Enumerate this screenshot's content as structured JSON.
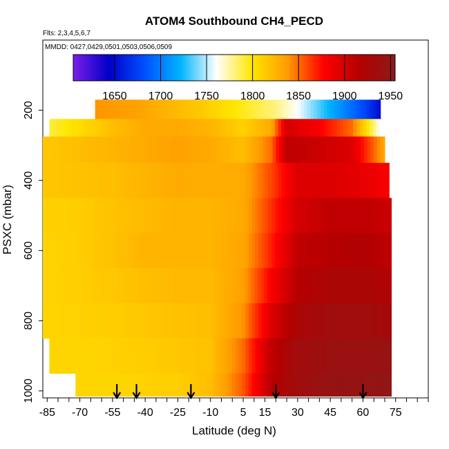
{
  "chart_data": {
    "type": "heatmap",
    "title": "ATOM4 Southbound CH4_PECD",
    "annotations": [
      "Flts: 2,3,4,5,6,7",
      "MMDD: 0427,0429,0501,0503,0506,0509"
    ],
    "xlabel": "Latitude (deg N)",
    "ylabel": "PSXC (mbar)",
    "x_ticks": [
      -85,
      -70,
      -55,
      -40,
      -25,
      -10,
      5,
      15,
      30,
      45,
      60,
      75
    ],
    "x_range": [
      -87,
      90
    ],
    "y_ticks": [
      200,
      400,
      600,
      800,
      1000
    ],
    "y_range": [
      1020,
      0
    ],
    "colorbar": {
      "ticks": [
        1650,
        1700,
        1750,
        1800,
        1850,
        1900,
        1950
      ],
      "range": [
        1605,
        1955
      ],
      "colors": [
        "#7a1ee8",
        "#0000c8",
        "#0050ff",
        "#00b4ff",
        "#ffffff",
        "#ffe600",
        "#ff9a00",
        "#ff0000",
        "#b40000",
        "#8c1a1a"
      ]
    },
    "arrow_latitudes": [
      -53,
      -44,
      -19,
      20,
      60
    ],
    "layers": [
      {
        "p": 200,
        "lat_min": -63,
        "lat_max": 68,
        "lats": [
          -63,
          -45,
          -30,
          -15,
          0,
          10,
          20,
          30,
          45,
          60,
          68
        ],
        "values": [
          1840,
          1835,
          1825,
          1815,
          1800,
          1790,
          1780,
          1760,
          1720,
          1680,
          1650
        ]
      },
      {
        "p": 250,
        "lat_min": -84,
        "lat_max": 68,
        "lats": [
          -84,
          -70,
          -55,
          -40,
          -25,
          -10,
          5,
          18,
          25,
          40,
          55,
          68
        ],
        "values": [
          1790,
          1805,
          1820,
          1830,
          1830,
          1825,
          1810,
          1830,
          1900,
          1880,
          1850,
          1760
        ]
      },
      {
        "p": 300,
        "lat_min": -88,
        "lat_max": 70,
        "lats": [
          -88,
          -70,
          -55,
          -40,
          -25,
          -10,
          5,
          18,
          25,
          40,
          55,
          70
        ],
        "values": [
          1815,
          1820,
          1825,
          1830,
          1835,
          1830,
          1820,
          1850,
          1910,
          1905,
          1895,
          1830
        ]
      },
      {
        "p": 400,
        "lat_min": -90,
        "lat_max": 72,
        "lats": [
          -90,
          -70,
          -55,
          -40,
          -25,
          -10,
          5,
          18,
          30,
          45,
          60,
          72
        ],
        "values": [
          1815,
          1818,
          1820,
          1825,
          1830,
          1828,
          1830,
          1860,
          1895,
          1895,
          1890,
          1880
        ]
      },
      {
        "p": 500,
        "lat_min": -90,
        "lat_max": 73,
        "lats": [
          -90,
          -70,
          -55,
          -40,
          -25,
          -10,
          5,
          18,
          30,
          45,
          60,
          73
        ],
        "values": [
          1810,
          1812,
          1818,
          1822,
          1825,
          1825,
          1830,
          1865,
          1900,
          1910,
          1910,
          1905
        ]
      },
      {
        "p": 600,
        "lat_min": -90,
        "lat_max": 73,
        "lats": [
          -90,
          -70,
          -55,
          -40,
          -25,
          -10,
          5,
          18,
          30,
          45,
          60,
          73
        ],
        "values": [
          1808,
          1812,
          1818,
          1825,
          1825,
          1825,
          1832,
          1870,
          1910,
          1915,
          1920,
          1910
        ]
      },
      {
        "p": 700,
        "lat_min": -89,
        "lat_max": 73,
        "lats": [
          -89,
          -70,
          -55,
          -40,
          -25,
          -10,
          5,
          18,
          30,
          45,
          60,
          73
        ],
        "values": [
          1808,
          1812,
          1815,
          1820,
          1822,
          1822,
          1835,
          1880,
          1915,
          1925,
          1925,
          1920
        ]
      },
      {
        "p": 800,
        "lat_min": -87,
        "lat_max": 73,
        "lats": [
          -87,
          -70,
          -55,
          -40,
          -25,
          -10,
          5,
          18,
          30,
          45,
          60,
          73
        ],
        "values": [
          1808,
          1810,
          1812,
          1815,
          1818,
          1820,
          1840,
          1895,
          1925,
          1935,
          1935,
          1930
        ]
      },
      {
        "p": 900,
        "lat_min": -84,
        "lat_max": 73,
        "lats": [
          -84,
          -70,
          -55,
          -40,
          -25,
          -10,
          5,
          18,
          30,
          45,
          60,
          73
        ],
        "values": [
          1808,
          1808,
          1810,
          1812,
          1815,
          1818,
          1850,
          1910,
          1935,
          1940,
          1940,
          1945
        ]
      },
      {
        "p": 1000,
        "lat_min": -72,
        "lat_max": 73,
        "lats": [
          -72,
          -60,
          -50,
          -40,
          -25,
          -10,
          5,
          18,
          30,
          45,
          60,
          73
        ],
        "values": [
          1808,
          1808,
          1808,
          1810,
          1812,
          1820,
          1855,
          1915,
          1935,
          1945,
          1945,
          1950
        ]
      }
    ]
  }
}
